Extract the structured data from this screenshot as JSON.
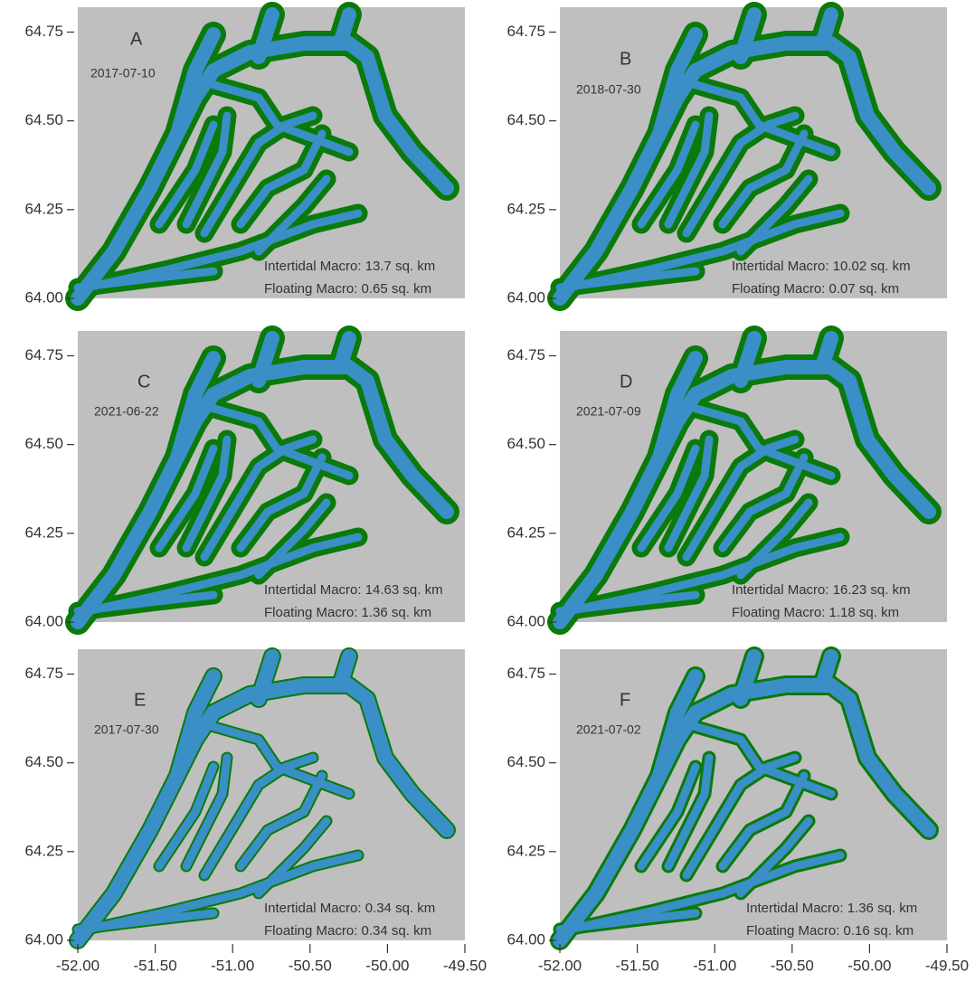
{
  "axes": {
    "xlim": [
      -52.0,
      -49.5
    ],
    "ylim": [
      64.0,
      64.82
    ],
    "xticks": [
      {
        "value": -52.0,
        "label": "-52.00"
      },
      {
        "value": -51.5,
        "label": "-51.50"
      },
      {
        "value": -51.0,
        "label": "-51.00"
      },
      {
        "value": -50.5,
        "label": "-50.50"
      },
      {
        "value": -50.0,
        "label": "-50.00"
      },
      {
        "value": -49.5,
        "label": "-49.50"
      }
    ],
    "yticks": [
      {
        "value": 64.0,
        "label": "64.00"
      },
      {
        "value": 64.25,
        "label": "64.25"
      },
      {
        "value": 64.5,
        "label": "64.50"
      },
      {
        "value": 64.75,
        "label": "64.75"
      }
    ]
  },
  "panels": [
    {
      "label": "A",
      "date": "2017-07-10",
      "intertidal": "Intertidal Macro: 13.7 sq. km",
      "floating": "Floating Macro: 0.65 sq. km"
    },
    {
      "label": "B",
      "date": "2018-07-30",
      "intertidal": "Intertidal Macro: 10.02 sq. km",
      "floating": "Floating Macro: 0.07 sq. km"
    },
    {
      "label": "C",
      "date": "2021-06-22",
      "intertidal": "Intertidal Macro: 14.63 sq. km",
      "floating": "Floating Macro: 1.36 sq. km"
    },
    {
      "label": "D",
      "date": "2021-07-09",
      "intertidal": "Intertidal Macro: 16.23 sq. km",
      "floating": "Floating Macro: 1.18 sq. km"
    },
    {
      "label": "E",
      "date": "2017-07-30",
      "intertidal": "Intertidal Macro: 0.34 sq. km",
      "floating": "Floating Macro: 0.34 sq. km"
    },
    {
      "label": "F",
      "date": "2021-07-02",
      "intertidal": "Intertidal Macro: 1.36 sq. km",
      "floating": "Floating Macro: 0.16 sq. km"
    }
  ]
}
